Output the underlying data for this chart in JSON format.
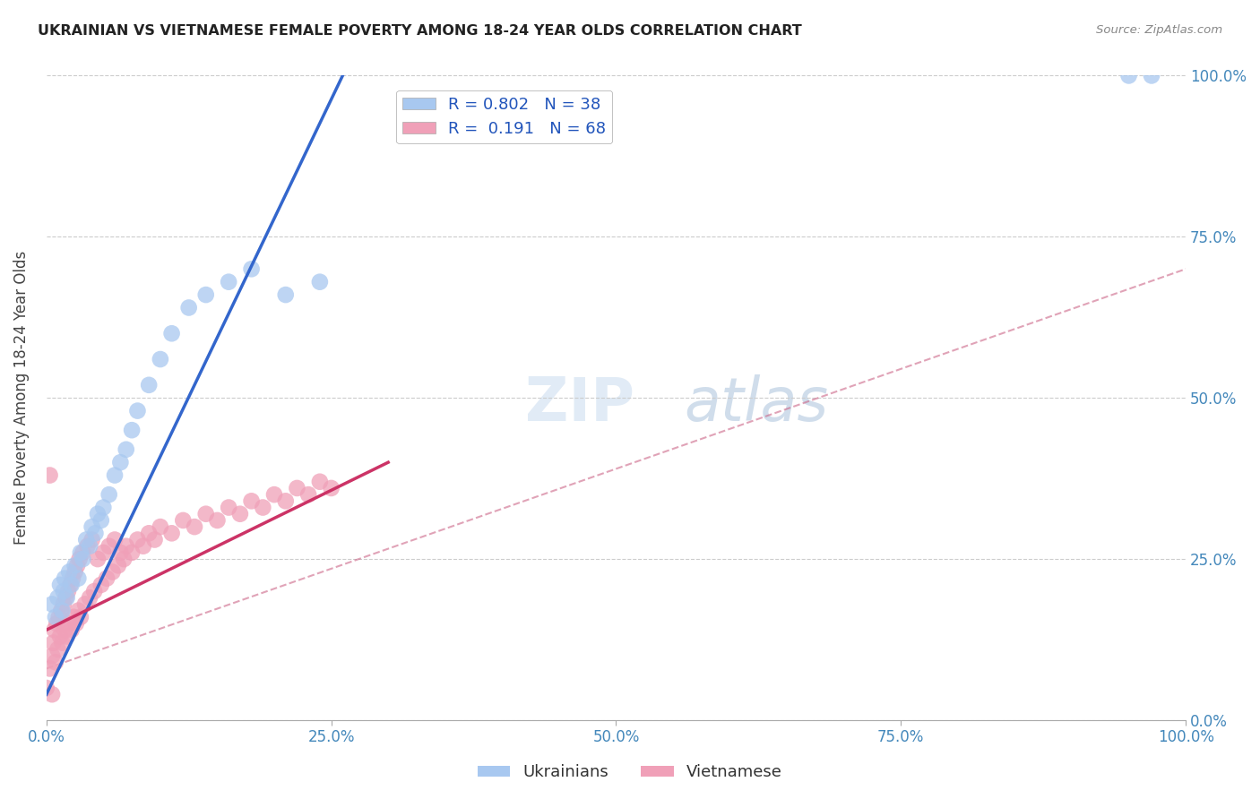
{
  "title": "UKRAINIAN VS VIETNAMESE FEMALE POVERTY AMONG 18-24 YEAR OLDS CORRELATION CHART",
  "source": "Source: ZipAtlas.com",
  "ylabel": "Female Poverty Among 18-24 Year Olds",
  "xlim": [
    0,
    1.0
  ],
  "ylim": [
    0,
    1.0
  ],
  "xticks": [
    0.0,
    0.25,
    0.5,
    0.75,
    1.0
  ],
  "yticks": [
    0.0,
    0.25,
    0.5,
    0.75,
    1.0
  ],
  "xticklabels": [
    "0.0%",
    "25.0%",
    "50.0%",
    "75.0%",
    "100.0%"
  ],
  "yticklabels": [
    "0.0%",
    "25.0%",
    "50.0%",
    "75.0%",
    "100.0%"
  ],
  "legend_R_ukrainian": "0.802",
  "legend_N_ukrainian": "38",
  "legend_R_vietnamese": "0.191",
  "legend_N_vietnamese": "68",
  "ukrainian_color": "#a8c8f0",
  "vietnamese_color": "#f0a0b8",
  "ukrainian_line_color": "#3366cc",
  "vietnamese_line_color": "#cc3366",
  "dashed_line_color": "#cc6688",
  "background_color": "#ffffff",
  "watermark_zip": "ZIP",
  "watermark_atlas": "atlas",
  "ukrainian_x": [
    0.005,
    0.008,
    0.01,
    0.012,
    0.014,
    0.015,
    0.016,
    0.018,
    0.02,
    0.022,
    0.025,
    0.028,
    0.03,
    0.032,
    0.035,
    0.038,
    0.04,
    0.043,
    0.045,
    0.048,
    0.05,
    0.055,
    0.06,
    0.065,
    0.07,
    0.075,
    0.08,
    0.09,
    0.1,
    0.11,
    0.125,
    0.14,
    0.16,
    0.18,
    0.21,
    0.24,
    0.95,
    0.97
  ],
  "ukrainian_y": [
    0.18,
    0.16,
    0.19,
    0.21,
    0.17,
    0.2,
    0.22,
    0.19,
    0.23,
    0.21,
    0.24,
    0.22,
    0.26,
    0.25,
    0.28,
    0.27,
    0.3,
    0.29,
    0.32,
    0.31,
    0.33,
    0.35,
    0.38,
    0.4,
    0.42,
    0.45,
    0.48,
    0.52,
    0.56,
    0.6,
    0.64,
    0.66,
    0.68,
    0.7,
    0.66,
    0.68,
    1.0,
    1.0
  ],
  "vietnamese_x": [
    0.0,
    0.003,
    0.005,
    0.006,
    0.007,
    0.008,
    0.009,
    0.01,
    0.011,
    0.012,
    0.013,
    0.014,
    0.015,
    0.016,
    0.017,
    0.018,
    0.019,
    0.02,
    0.021,
    0.022,
    0.023,
    0.024,
    0.025,
    0.026,
    0.027,
    0.028,
    0.029,
    0.03,
    0.032,
    0.034,
    0.036,
    0.038,
    0.04,
    0.042,
    0.045,
    0.048,
    0.05,
    0.053,
    0.055,
    0.058,
    0.06,
    0.063,
    0.065,
    0.068,
    0.07,
    0.075,
    0.08,
    0.085,
    0.09,
    0.095,
    0.1,
    0.11,
    0.12,
    0.13,
    0.14,
    0.15,
    0.16,
    0.17,
    0.18,
    0.19,
    0.2,
    0.21,
    0.22,
    0.23,
    0.24,
    0.25,
    0.003,
    0.005
  ],
  "vietnamese_y": [
    0.05,
    0.08,
    0.1,
    0.12,
    0.14,
    0.09,
    0.15,
    0.11,
    0.16,
    0.13,
    0.17,
    0.12,
    0.18,
    0.14,
    0.19,
    0.13,
    0.2,
    0.15,
    0.21,
    0.14,
    0.22,
    0.16,
    0.23,
    0.15,
    0.24,
    0.17,
    0.25,
    0.16,
    0.26,
    0.18,
    0.27,
    0.19,
    0.28,
    0.2,
    0.25,
    0.21,
    0.26,
    0.22,
    0.27,
    0.23,
    0.28,
    0.24,
    0.26,
    0.25,
    0.27,
    0.26,
    0.28,
    0.27,
    0.29,
    0.28,
    0.3,
    0.29,
    0.31,
    0.3,
    0.32,
    0.31,
    0.33,
    0.32,
    0.34,
    0.33,
    0.35,
    0.34,
    0.36,
    0.35,
    0.37,
    0.36,
    0.38,
    0.04
  ],
  "ukr_line_x0": 0.0,
  "ukr_line_y0": 0.04,
  "ukr_line_x1": 0.26,
  "ukr_line_y1": 1.0,
  "vie_line_x0": 0.0,
  "vie_line_y0": 0.14,
  "vie_line_x1": 0.3,
  "vie_line_y1": 0.4,
  "dash_line_x0": 0.0,
  "dash_line_y0": 0.08,
  "dash_line_x1": 1.0,
  "dash_line_y1": 0.7
}
